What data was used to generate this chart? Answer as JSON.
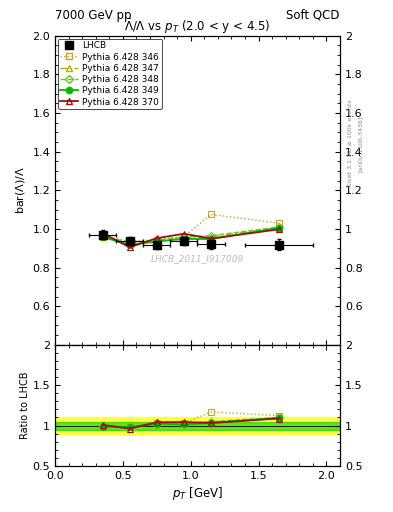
{
  "title_main": "$\\bar{\\Lambda}/\\Lambda$ vs $p_T$ (2.0 < y < 4.5)",
  "header_left": "7000 GeV pp",
  "header_right": "Soft QCD",
  "ylabel_main": "bar($\\Lambda$)/$\\Lambda$",
  "ylabel_ratio": "Ratio to LHCB",
  "xlabel": "$p_T$ [GeV]",
  "watermark": "LHCB_2011_I917009",
  "right_label1": "Rivet 3.1.10, ≥ 100k events",
  "right_label2": "[arXiv:1306.3436]",
  "lhcb_x": [
    0.35,
    0.55,
    0.75,
    0.95,
    1.15,
    1.65
  ],
  "lhcb_y": [
    0.97,
    0.94,
    0.915,
    0.935,
    0.92,
    0.918
  ],
  "lhcb_ey": [
    0.022,
    0.02,
    0.018,
    0.018,
    0.022,
    0.028
  ],
  "lhcb_ex": [
    0.1,
    0.1,
    0.1,
    0.1,
    0.1,
    0.25
  ],
  "p346_x": [
    0.35,
    0.55,
    0.75,
    0.95,
    1.15,
    1.65
  ],
  "p346_y": [
    0.965,
    0.935,
    0.945,
    0.96,
    1.075,
    1.03
  ],
  "p347_x": [
    0.35,
    0.55,
    0.75,
    0.95,
    1.15,
    1.65
  ],
  "p347_y": [
    0.96,
    0.922,
    0.938,
    0.952,
    0.96,
    1.005
  ],
  "p348_x": [
    0.35,
    0.55,
    0.75,
    0.95,
    1.15,
    1.65
  ],
  "p348_y": [
    0.963,
    0.93,
    0.942,
    0.958,
    0.965,
    1.01
  ],
  "p349_x": [
    0.35,
    0.55,
    0.75,
    0.95,
    1.15,
    1.65
  ],
  "p349_y": [
    0.958,
    0.918,
    0.935,
    0.948,
    0.948,
    1.005
  ],
  "p370_x": [
    0.35,
    0.55,
    0.75,
    0.95,
    1.15,
    1.65
  ],
  "p370_y": [
    0.978,
    0.905,
    0.952,
    0.975,
    0.95,
    0.998
  ],
  "ylim_main": [
    0.4,
    2.0
  ],
  "ylim_ratio": [
    0.5,
    2.0
  ],
  "xlim": [
    0.0,
    2.1
  ],
  "yticks_main": [
    0.6,
    0.8,
    1.0,
    1.2,
    1.4,
    1.6,
    1.8,
    2.0
  ],
  "yticks_ratio": [
    0.5,
    1.0,
    1.5,
    2.0
  ],
  "color_346": "#c8a030",
  "color_347": "#b0b000",
  "color_348": "#60c820",
  "color_349": "#00bb00",
  "color_370": "#991010",
  "color_lhcb": "#000000",
  "band_green_lo": 0.95,
  "band_green_hi": 1.05,
  "band_yellow_lo": 0.9,
  "band_yellow_hi": 1.1
}
